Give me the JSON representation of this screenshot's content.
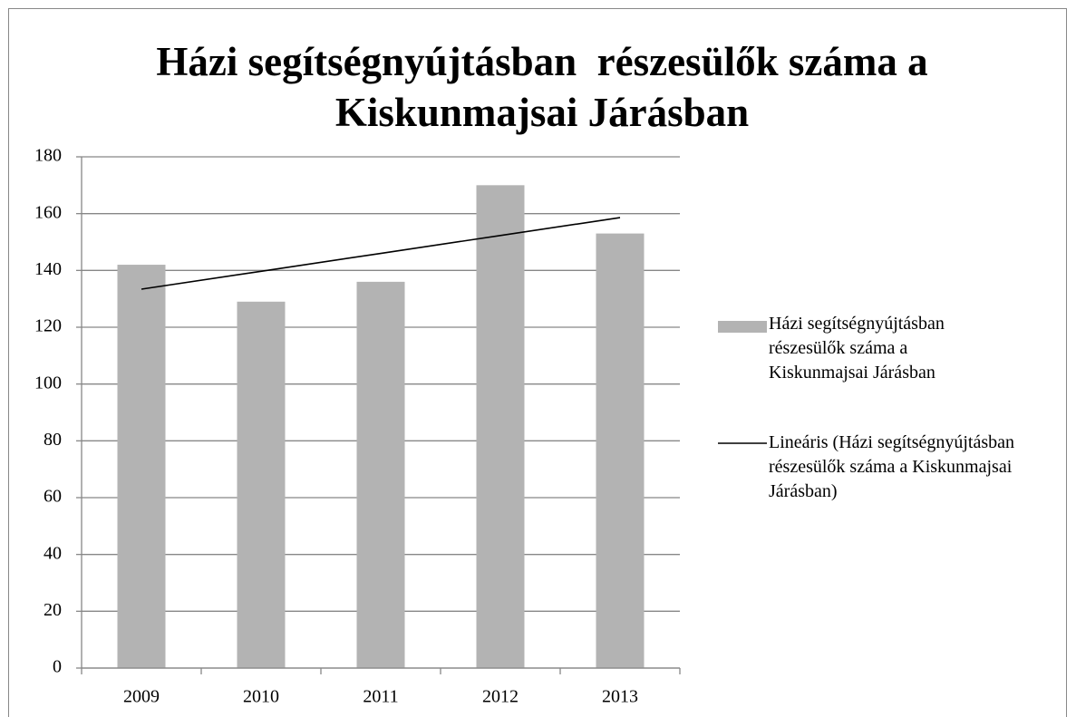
{
  "chart_data": {
    "type": "bar",
    "title": "Házi segítségnyújtásban  részesülők száma a Kiskunmajsai Járásban",
    "categories": [
      "2009",
      "2010",
      "2011",
      "2012",
      "2013"
    ],
    "series": [
      {
        "name": "Házi segítségnyújtásban részesülők száma a Kiskunmajsai Járásban",
        "color": "#b3b3b3",
        "values": [
          142,
          129,
          136,
          170,
          153
        ]
      },
      {
        "name": "Lineáris (Házi segítségnyújtásban  részesülők száma a Kiskunmajsai Járásban)",
        "color": "#000000",
        "type": "line",
        "values": [
          133.4,
          139.7,
          146,
          152.3,
          158.6
        ]
      }
    ],
    "ylim": [
      0,
      180
    ],
    "yticks": [
      0,
      20,
      40,
      60,
      80,
      100,
      120,
      140,
      160,
      180
    ],
    "grid": true,
    "legend": "right"
  }
}
